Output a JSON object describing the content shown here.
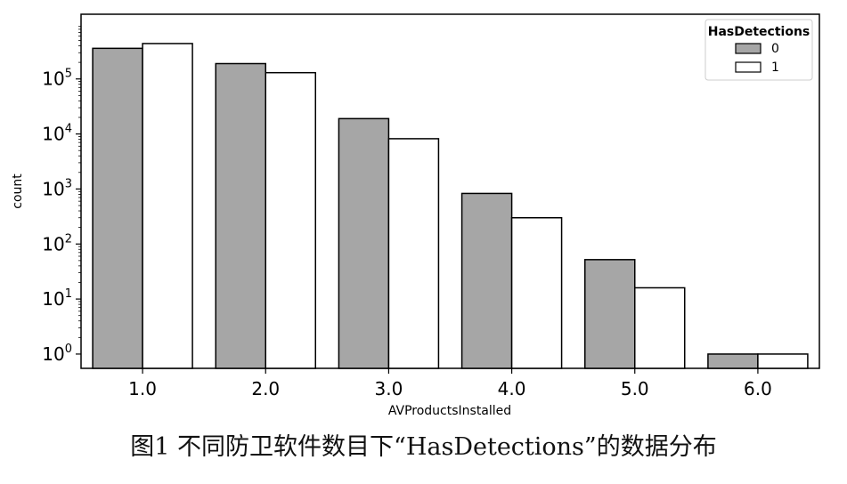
{
  "caption": "图1 不同防卫软件数目下“HasDetections”的数据分布",
  "chart_data": {
    "type": "bar",
    "scale": "log",
    "xlabel": "AVProductsInstalled",
    "ylabel": "count",
    "categories": [
      "1.0",
      "2.0",
      "3.0",
      "4.0",
      "5.0",
      "6.0"
    ],
    "y_ticks": [
      1,
      10,
      100,
      1000,
      10000,
      100000
    ],
    "y_tick_labels": [
      {
        "base": "10",
        "exp": "0"
      },
      {
        "base": "10",
        "exp": "1"
      },
      {
        "base": "10",
        "exp": "2"
      },
      {
        "base": "10",
        "exp": "3"
      },
      {
        "base": "10",
        "exp": "4"
      },
      {
        "base": "10",
        "exp": "5"
      }
    ],
    "ylim": [
      0.55,
      1500000
    ],
    "legend": {
      "title": "HasDetections",
      "position": "top-right"
    },
    "series": [
      {
        "name": "0",
        "color": "#a6a6a6",
        "values": [
          360000,
          190000,
          19000,
          830,
          52,
          1
        ]
      },
      {
        "name": "1",
        "color": "#ffffff",
        "values": [
          440000,
          130000,
          8200,
          300,
          16,
          1
        ]
      }
    ]
  }
}
